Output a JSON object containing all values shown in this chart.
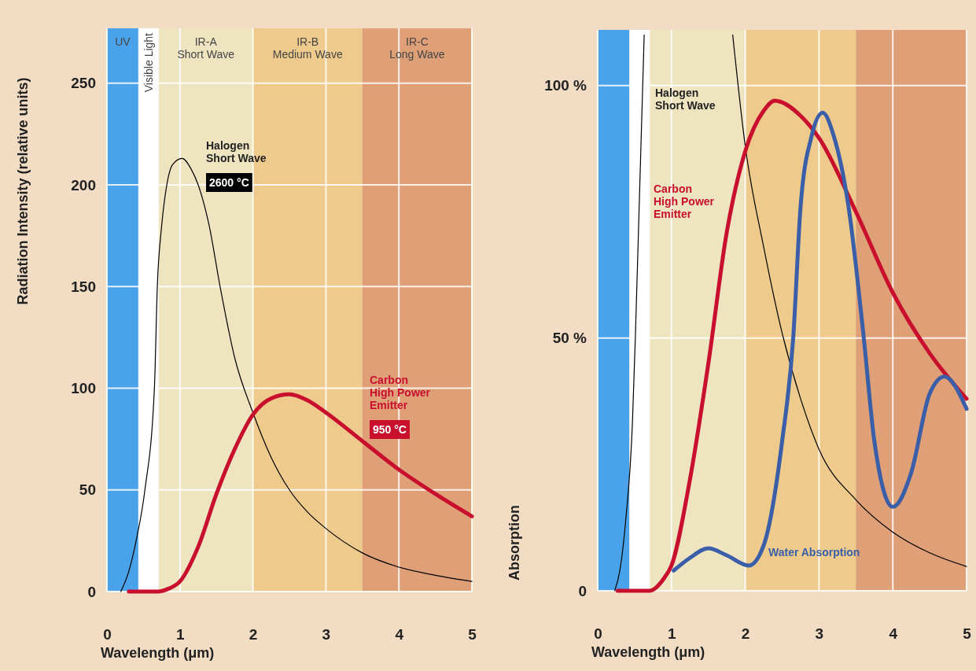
{
  "chart_data": [
    {
      "type": "line",
      "xlabel": "Wavelength (μm)",
      "ylabel": "Radiation Intensity (relative units)",
      "xlim": [
        0,
        5
      ],
      "ylim": [
        0,
        277
      ],
      "xticks": [
        0,
        1,
        2,
        3,
        4,
        5
      ],
      "yticks": [
        0,
        50,
        100,
        150,
        200,
        250
      ],
      "grid": true,
      "legend": false,
      "bands": [
        {
          "axis": "x",
          "from": 0,
          "to": 0.43,
          "label": "UV",
          "color": "#4aa3ea"
        },
        {
          "axis": "x",
          "from": 0.43,
          "to": 0.71,
          "label": "Visible Light",
          "color": "#ffffff"
        },
        {
          "axis": "x",
          "from": 0.71,
          "to": 2,
          "label": "IR-A\nShort Wave",
          "color": "#efe4c0"
        },
        {
          "axis": "x",
          "from": 2,
          "to": 3.5,
          "label": "IR-B\nMedium Wave",
          "color": "#eecb8c"
        },
        {
          "axis": "x",
          "from": 3.5,
          "to": 5,
          "label": "IR-C\nLong Wave",
          "color": "#dfa078"
        }
      ],
      "series": [
        {
          "name": "Halogen\nShort Wave",
          "color": "#000000",
          "x": [
            0.19,
            0.3,
            0.4,
            0.52,
            0.65,
            0.69,
            0.75,
            0.82,
            0.9,
            1.03,
            1.15,
            1.25,
            1.4,
            1.55,
            1.75,
            2,
            2.25,
            2.5,
            2.75,
            3,
            3.5,
            4,
            4.5,
            5
          ],
          "values": [
            0,
            10,
            25,
            50,
            100,
            150,
            180,
            200,
            210,
            213,
            208,
            200,
            180,
            150,
            115,
            88,
            66,
            50,
            39,
            31,
            19,
            12,
            8,
            5
          ]
        },
        {
          "name": "Carbon\nHigh Power\nEmitter",
          "color": "#c8102e",
          "x": [
            0.3,
            0.7,
            0.85,
            1,
            1.25,
            1.5,
            1.75,
            2,
            2.25,
            2.5,
            2.75,
            3,
            3.5,
            4,
            4.5,
            5
          ],
          "values": [
            0,
            0,
            1.5,
            5,
            22,
            48,
            70,
            87,
            95,
            97,
            94,
            88,
            74,
            60,
            48,
            37
          ]
        }
      ],
      "annotations": [
        "2600 °C",
        "950 °C"
      ]
    },
    {
      "type": "line",
      "xlabel": "Wavelength (μm)",
      "ylabel": "Absorption",
      "xlim": [
        0,
        5
      ],
      "ylim": [
        0,
        111
      ],
      "xticks": [
        0,
        1,
        2,
        3,
        4,
        5
      ],
      "yticks": [
        0,
        {
          "value": 50,
          "label": "50 %"
        },
        {
          "value": 100,
          "label": "100 %"
        }
      ],
      "grid": true,
      "legend": false,
      "bands": [
        {
          "axis": "x",
          "from": 0,
          "to": 0.43,
          "color": "#4aa3ea"
        },
        {
          "axis": "x",
          "from": 0.43,
          "to": 0.71,
          "color": "#ffffff"
        },
        {
          "axis": "x",
          "from": 0.71,
          "to": 2,
          "color": "#efe4c0"
        },
        {
          "axis": "x",
          "from": 2,
          "to": 3.5,
          "color": "#eecb8c"
        },
        {
          "axis": "x",
          "from": 3.5,
          "to": 5,
          "color": "#dfa078"
        }
      ],
      "series": [
        {
          "name": "Halogen\nShort Wave",
          "color": "#000000",
          "x": [
            0.23,
            0.3,
            0.38,
            0.47,
            0.51,
            0.56,
            0.6,
            0.63,
            1,
            1.83,
            2,
            2.25,
            2.5,
            2.75,
            3,
            3.5,
            4,
            4.5,
            5
          ],
          "values": [
            0,
            4,
            14,
            33,
            50,
            75,
            95,
            110,
            null,
            110,
            88,
            68,
            51,
            38,
            28,
            18,
            11.6,
            7.5,
            4.8
          ]
        },
        {
          "name": "Carbon\nHigh Power\nEmitter",
          "color": "#c8102e",
          "x": [
            0.27,
            0.7,
            0.9,
            1,
            1.25,
            1.5,
            1.75,
            2,
            2.25,
            2.4,
            2.75,
            3,
            3.5,
            4,
            4.5,
            5
          ],
          "values": [
            0,
            0,
            2.5,
            5,
            22,
            45,
            71,
            87,
            95,
            97,
            94,
            89.6,
            75,
            59,
            47,
            38
          ]
        },
        {
          "name": "Water Absorption",
          "color": "#3a5fa8",
          "x": [
            1.03,
            1.25,
            1.5,
            1.75,
            2.05,
            2.25,
            2.5,
            2.65,
            2.75,
            2.9,
            3.05,
            3.2,
            3.4,
            3.6,
            3.75,
            4,
            4.25,
            4.5,
            4.7,
            5
          ],
          "values": [
            4,
            6.5,
            8.4,
            7,
            5,
            9,
            29.6,
            50,
            76,
            90,
            94.6,
            90,
            76,
            51,
            29.6,
            16.6,
            23.4,
            39,
            42.4,
            36
          ]
        }
      ]
    }
  ]
}
